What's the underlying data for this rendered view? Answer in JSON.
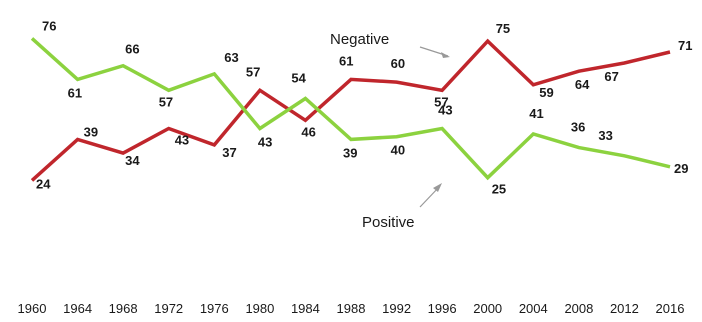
{
  "chart_data": {
    "type": "line",
    "title": "",
    "xlabel": "",
    "ylabel": "",
    "x": [
      "1960",
      "1964",
      "1968",
      "1972",
      "1976",
      "1980",
      "1984",
      "1988",
      "1992",
      "1996",
      "2000",
      "2004",
      "2008",
      "2012",
      "2016"
    ],
    "ylim": [
      15,
      82
    ],
    "grid": false,
    "series": [
      {
        "name": "Negative",
        "color": "#c0262c",
        "values": [
          24,
          39,
          34,
          43,
          37,
          57,
          46,
          61,
          60,
          57,
          75,
          59,
          64,
          67,
          71
        ],
        "labels": [
          "24",
          "39",
          "34",
          "43",
          "37",
          "57",
          "46",
          "61",
          "60",
          "57",
          "75",
          "59",
          "64",
          "67",
          "71"
        ]
      },
      {
        "name": "Positive",
        "color": "#8cd23f",
        "values": [
          76,
          61,
          66,
          57,
          63,
          43,
          54,
          39,
          40,
          43,
          25,
          41,
          36,
          33,
          29
        ],
        "labels": [
          "76",
          "61",
          "66",
          "57",
          "63",
          "43",
          "54",
          "39",
          "40",
          "43",
          "25",
          "41",
          "36",
          "33",
          "29"
        ]
      }
    ]
  }
}
